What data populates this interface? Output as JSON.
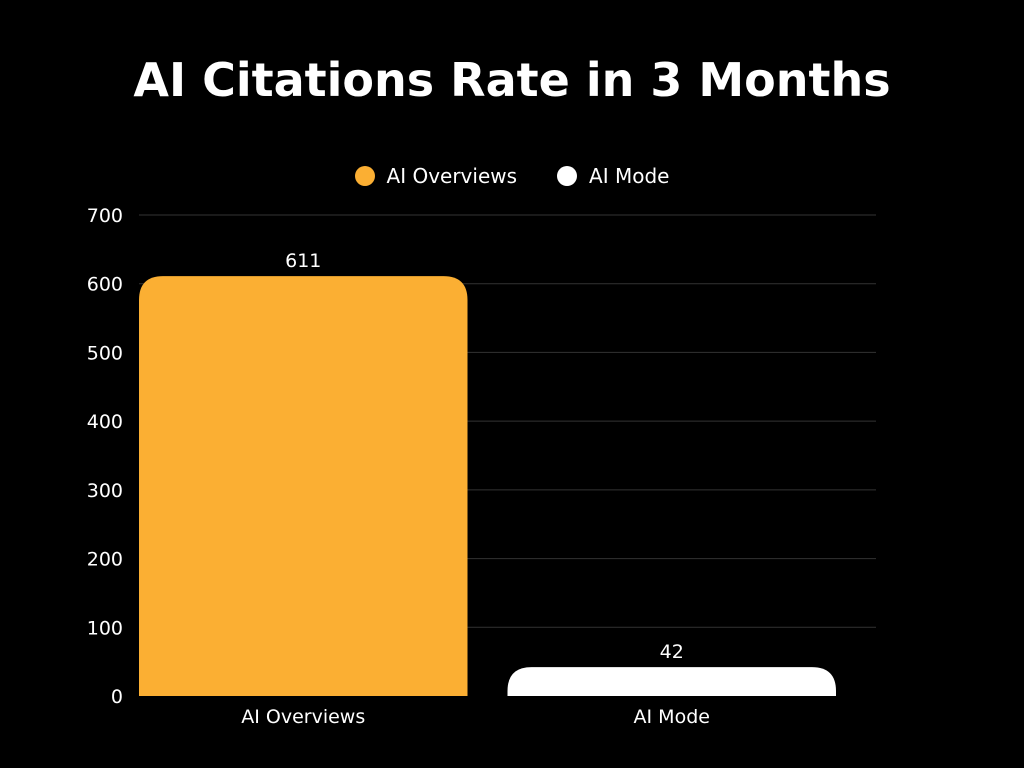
{
  "chart_data": {
    "type": "bar",
    "title": "AI Citations Rate in 3 Months",
    "categories": [
      "AI Overviews",
      "AI Mode"
    ],
    "series": [
      {
        "name": "AI Overviews",
        "values": [
          611,
          null
        ],
        "color": "#FBAF33"
      },
      {
        "name": "AI Mode",
        "values": [
          null,
          42
        ],
        "color": "#FFFFFF"
      }
    ],
    "values": [
      611,
      42
    ],
    "data_labels": [
      "611",
      "42"
    ],
    "bar_colors": [
      "#FBAF33",
      "#FFFFFF"
    ],
    "xlabel": "",
    "ylabel": "",
    "ylim": [
      0,
      700
    ],
    "yticks": [
      0,
      100,
      200,
      300,
      400,
      500,
      600,
      700
    ],
    "ytick_labels": [
      "0",
      "100",
      "200",
      "300",
      "400",
      "500",
      "600",
      "700"
    ],
    "grid": true,
    "legend_position": "top-center",
    "background": "#000000",
    "text_color": "#FFFFFF",
    "grid_color": "#333333"
  }
}
